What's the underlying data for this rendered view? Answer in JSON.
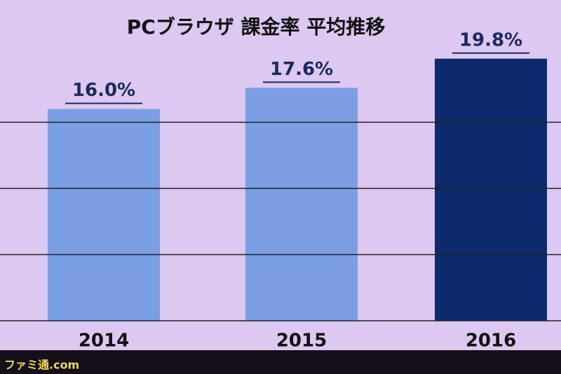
{
  "chart_data": {
    "type": "bar",
    "title": "PCブラウザ 課金率 平均推移",
    "categories": [
      "2014",
      "2015",
      "2016"
    ],
    "values": [
      16.0,
      17.6,
      19.8
    ],
    "value_labels": [
      "16.0%",
      "17.6%",
      "19.8%"
    ],
    "colors": [
      "#7c9fe4",
      "#7c9fe4",
      "#0c2a6c"
    ],
    "ylim": [
      0,
      20
    ],
    "yticks": [
      0,
      5,
      10,
      15
    ],
    "grid": true
  },
  "watermark": "ファミ通.com"
}
